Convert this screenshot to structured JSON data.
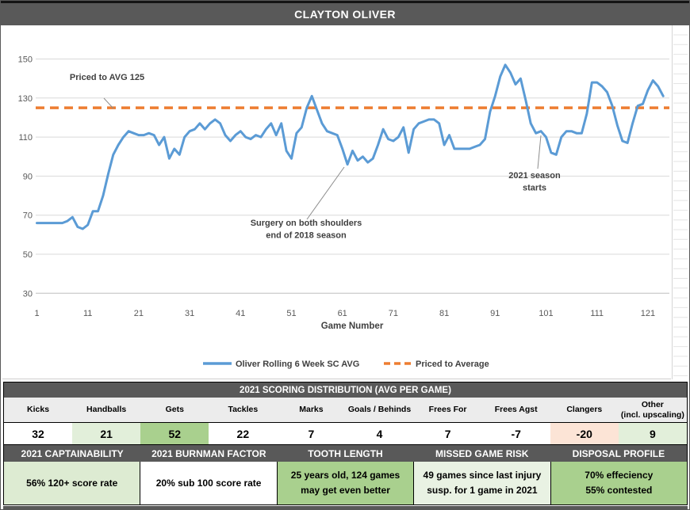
{
  "title": "CLAYTON OLIVER",
  "colors": {
    "header_bar": "#595959",
    "line_blue": "#5B9BD5",
    "dash_orange": "#ED7D31",
    "gridline": "#D9D9D9",
    "light_green": "#E2EFDA",
    "medium_green": "#A9D08E",
    "light_red": "#FCE4D6",
    "header_row_gray": "#ECECEC"
  },
  "chart_data": {
    "type": "line",
    "title": "",
    "xlabel": "Game Number",
    "ylabel": "",
    "x_ticks": [
      1,
      11,
      21,
      31,
      41,
      51,
      61,
      71,
      81,
      91,
      101,
      111,
      121
    ],
    "y_ticks": [
      150,
      130,
      110,
      90,
      70,
      50,
      30
    ],
    "ylim": [
      30,
      150
    ],
    "grid": true,
    "legend_position": "bottom",
    "series": [
      {
        "name": "Oliver Rolling 6 Week SC AVG",
        "color": "#5B9BD5",
        "style": "solid",
        "x_start": 1,
        "values": [
          66,
          66,
          66,
          66,
          66,
          66,
          67,
          69,
          64,
          63,
          65,
          72,
          72,
          80,
          91,
          101,
          106,
          110,
          113,
          112,
          111,
          111,
          112,
          111,
          106,
          110,
          99,
          104,
          101,
          110,
          113,
          114,
          117,
          114,
          117,
          119,
          117,
          111,
          108,
          111,
          113,
          110,
          109,
          111,
          110,
          114,
          117,
          111,
          117,
          103,
          99,
          112,
          115,
          125,
          131,
          124,
          117,
          113,
          112,
          111,
          104,
          96,
          103,
          98,
          100,
          97,
          99,
          106,
          114,
          109,
          108,
          110,
          115,
          102,
          114,
          117,
          118,
          119,
          119,
          117,
          106,
          111,
          104,
          104,
          104,
          104,
          105,
          106,
          109,
          123,
          131,
          141,
          147,
          143,
          137,
          140,
          129,
          117,
          112,
          113,
          110,
          102,
          101,
          110,
          113,
          113,
          112,
          112,
          122,
          138,
          138,
          136,
          133,
          126,
          116,
          108,
          107,
          117,
          126,
          127,
          134,
          139,
          136,
          131
        ]
      },
      {
        "name": "Priced to Average",
        "color": "#ED7D31",
        "style": "dashed",
        "constant": 125
      }
    ],
    "annotations": [
      {
        "id": "priced",
        "lines": [
          "Priced to AVG 125"
        ]
      },
      {
        "id": "surgery",
        "lines": [
          "Surgery on both shoulders",
          "end of 2018 season"
        ]
      },
      {
        "id": "season",
        "lines": [
          "2021 season",
          "starts"
        ]
      }
    ]
  },
  "scoring_table": {
    "title": "2021 SCORING DISTRIBUTION (AVG PER GAME)",
    "columns": [
      {
        "label_lines": [
          "Kicks"
        ],
        "value": "32",
        "bg": "#FFFFFF"
      },
      {
        "label_lines": [
          "Handballs"
        ],
        "value": "21",
        "bg": "#E2EFDA"
      },
      {
        "label_lines": [
          "Gets"
        ],
        "value": "52",
        "bg": "#A9D08E"
      },
      {
        "label_lines": [
          "Tackles"
        ],
        "value": "22",
        "bg": "#FFFFFF"
      },
      {
        "label_lines": [
          "Marks"
        ],
        "value": "7",
        "bg": "#FFFFFF"
      },
      {
        "label_lines": [
          "Goals / Behinds"
        ],
        "value": "4",
        "bg": "#FFFFFF"
      },
      {
        "label_lines": [
          "Frees For"
        ],
        "value": "7",
        "bg": "#FFFFFF"
      },
      {
        "label_lines": [
          "Frees Agst"
        ],
        "value": "-7",
        "bg": "#FFFFFF"
      },
      {
        "label_lines": [
          "Clangers"
        ],
        "value": "-20",
        "bg": "#FCE4D6"
      },
      {
        "label_lines": [
          "Other",
          "(incl. upscaling)"
        ],
        "value": "9",
        "bg": "#E2EFDA"
      }
    ]
  },
  "info_sections": [
    {
      "header": "2021 CAPTAINABILITY",
      "lines": [
        "56% 120+ score rate"
      ],
      "bg": "#DDEBD2"
    },
    {
      "header": "2021 BURNMAN FACTOR",
      "lines": [
        "20% sub 100 score rate"
      ],
      "bg": "#FFFFFF"
    },
    {
      "header": "TOOTH LENGTH",
      "lines": [
        "25 years old, 124 games",
        "may get even better"
      ],
      "bg": "#A9D08E"
    },
    {
      "header": "MISSED GAME RISK",
      "lines": [
        "49 games since last injury",
        "susp. for 1 game in 2021"
      ],
      "bg": "#E9F2E3"
    },
    {
      "header": "DISPOSAL PROFILE",
      "lines": [
        "70% effeciency",
        "55% contested"
      ],
      "bg": "#A9D08E"
    }
  ]
}
